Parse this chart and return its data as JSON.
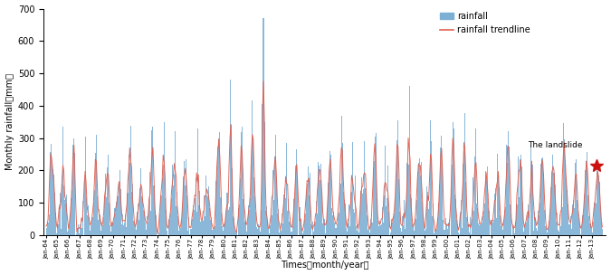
{
  "ylabel": "Monthly rainfall（mm）",
  "xlabel": "Times（month/year）",
  "ylim": [
    0,
    700
  ],
  "yticks": [
    0,
    100,
    200,
    300,
    400,
    500,
    600,
    700
  ],
  "bar_color": "#7bafd4",
  "trend_color": "#e06050",
  "star_color": "#cc1111",
  "legend_labels": [
    "rainfall",
    "rainfall trendline"
  ],
  "annotation": "The landslide",
  "figsize": [
    6.75,
    3.04
  ],
  "dpi": 100,
  "n_years": 50,
  "start_year": 1964,
  "months_per_year": 12
}
